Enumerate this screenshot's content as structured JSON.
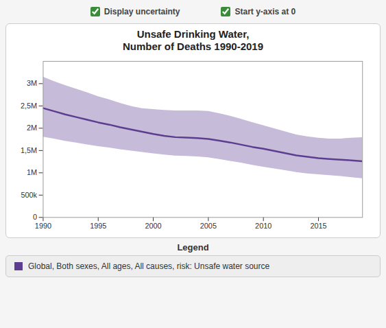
{
  "chart_data": {
    "type": "line",
    "title": "Unsafe Drinking Water,\nNumber of Deaths 1990-2019",
    "annotations": [
      "Display uncertainty",
      "Start y-axis at 0"
    ],
    "legend_title": "Legend",
    "legend": "bottom",
    "grid": false,
    "x": [
      1990,
      1991,
      1992,
      1993,
      1994,
      1995,
      1996,
      1997,
      1998,
      1999,
      2000,
      2001,
      2002,
      2003,
      2004,
      2005,
      2006,
      2007,
      2008,
      2009,
      2010,
      2011,
      2012,
      2013,
      2014,
      2015,
      2016,
      2017,
      2018,
      2019
    ],
    "xlim": [
      1990,
      2019
    ],
    "xticks": [
      1990,
      1995,
      2000,
      2005,
      2010,
      2015
    ],
    "ylim": [
      0,
      3500000
    ],
    "yticks": [
      0,
      {
        "value": 500000,
        "label": "500k"
      },
      {
        "value": 1000000,
        "label": "1M"
      },
      {
        "value": 1500000,
        "label": "1,5M"
      },
      {
        "value": 2000000,
        "label": "2M"
      },
      {
        "value": 2500000,
        "label": "2,5M"
      },
      {
        "value": 3000000,
        "label": "3M"
      }
    ],
    "series": [
      {
        "name": "Global, Both sexes, All ages, All causes, risk: Unsafe water source",
        "color": "#5c3d8f",
        "values": [
          2450000,
          2380000,
          2310000,
          2250000,
          2190000,
          2130000,
          2080000,
          2020000,
          1970000,
          1920000,
          1870000,
          1830000,
          1800000,
          1790000,
          1780000,
          1760000,
          1720000,
          1680000,
          1630000,
          1580000,
          1540000,
          1490000,
          1440000,
          1390000,
          1360000,
          1330000,
          1310000,
          1295000,
          1280000,
          1260000
        ],
        "upper": [
          3150000,
          3050000,
          2960000,
          2880000,
          2800000,
          2710000,
          2640000,
          2560000,
          2490000,
          2440000,
          2420000,
          2400000,
          2390000,
          2390000,
          2390000,
          2380000,
          2330000,
          2270000,
          2200000,
          2130000,
          2060000,
          1990000,
          1920000,
          1850000,
          1810000,
          1780000,
          1760000,
          1760000,
          1780000,
          1790000
        ],
        "lower": [
          1800000,
          1760000,
          1710000,
          1670000,
          1630000,
          1590000,
          1560000,
          1520000,
          1490000,
          1460000,
          1430000,
          1400000,
          1380000,
          1370000,
          1360000,
          1340000,
          1300000,
          1260000,
          1220000,
          1170000,
          1130000,
          1090000,
          1050000,
          1010000,
          980000,
          960000,
          940000,
          920000,
          895000,
          870000
        ]
      }
    ]
  }
}
